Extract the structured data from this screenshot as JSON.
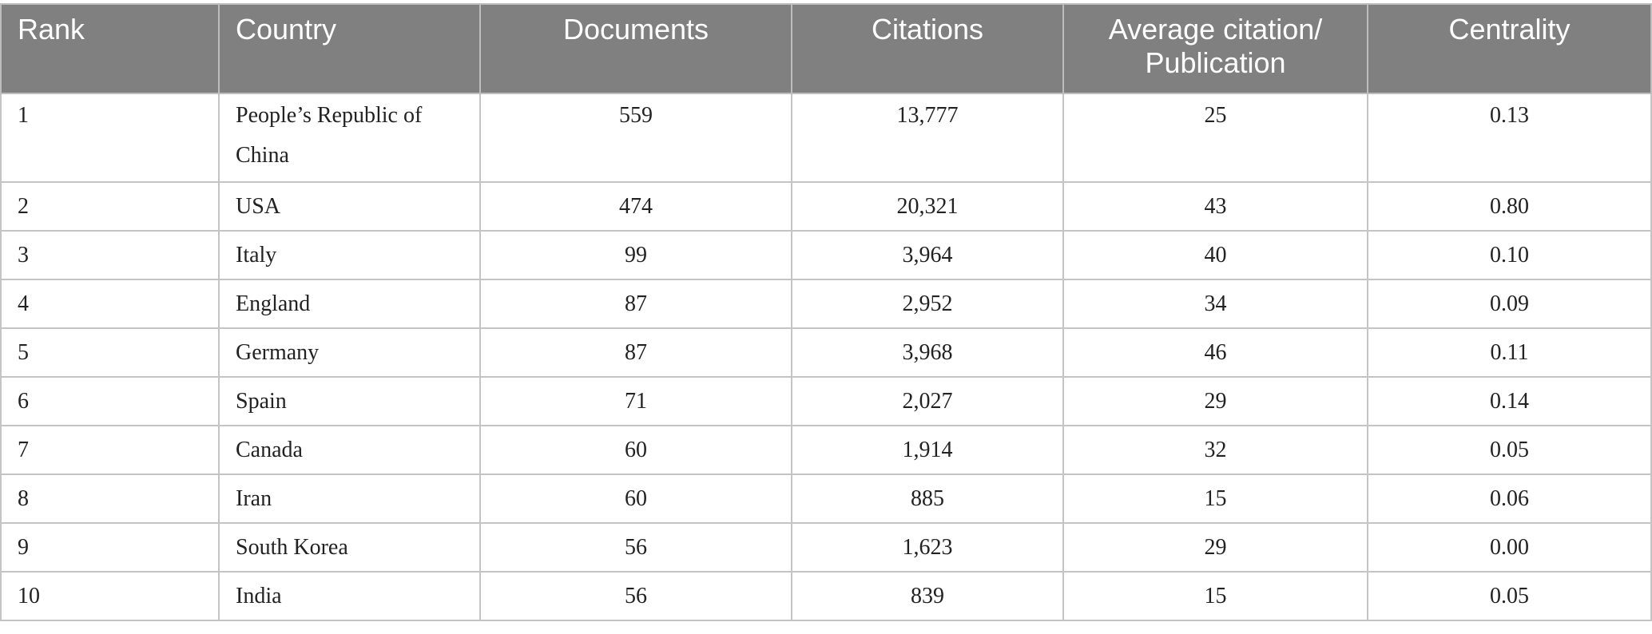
{
  "table": {
    "headers": [
      "Rank",
      "Country",
      "Documents",
      "Citations",
      "Average citation/ Publication",
      "Centrality"
    ],
    "rows": [
      [
        "1",
        "People’s Republic of China",
        "559",
        "13,777",
        "25",
        "0.13"
      ],
      [
        "2",
        "USA",
        "474",
        "20,321",
        "43",
        "0.80"
      ],
      [
        "3",
        "Italy",
        "99",
        "3,964",
        "40",
        "0.10"
      ],
      [
        "4",
        "England",
        "87",
        "2,952",
        "34",
        "0.09"
      ],
      [
        "5",
        "Germany",
        "87",
        "3,968",
        "46",
        "0.11"
      ],
      [
        "6",
        "Spain",
        "71",
        "2,027",
        "29",
        "0.14"
      ],
      [
        "7",
        "Canada",
        "60",
        "1,914",
        "32",
        "0.05"
      ],
      [
        "8",
        "Iran",
        "60",
        "885",
        "15",
        "0.06"
      ],
      [
        "9",
        "South Korea",
        "56",
        "1,623",
        "29",
        "0.00"
      ],
      [
        "10",
        "India",
        "56",
        "839",
        "15",
        "0.05"
      ]
    ]
  }
}
